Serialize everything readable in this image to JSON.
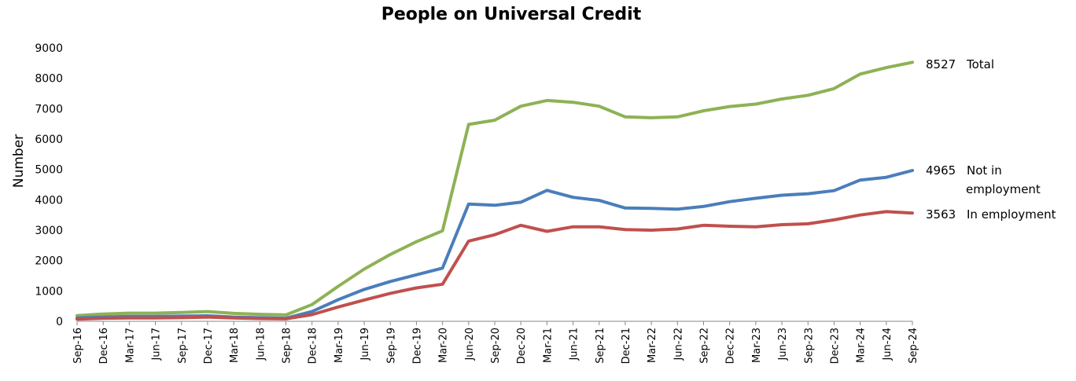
{
  "chart_data": {
    "type": "line",
    "title": "People on Universal Credit",
    "xlabel": "",
    "ylabel": "Number",
    "ylim": [
      0,
      9000
    ],
    "yticks": [
      0,
      1000,
      2000,
      3000,
      4000,
      5000,
      6000,
      7000,
      8000,
      9000
    ],
    "grid": false,
    "categories": [
      "Sep-16",
      "Dec-16",
      "Mar-17",
      "Jun-17",
      "Sep-17",
      "Dec-17",
      "Mar-18",
      "Jun-18",
      "Sep-18",
      "Dec-18",
      "Mar-19",
      "Jun-19",
      "Sep-19",
      "Dec-19",
      "Mar-20",
      "Jun-20",
      "Sep-20",
      "Dec-20",
      "Mar-21",
      "Jun-21",
      "Sep-21",
      "Dec-21",
      "Mar-22",
      "Jun-22",
      "Sep-22",
      "Dec-22",
      "Mar-23",
      "Jun-23",
      "Sep-23",
      "Dec-23",
      "Mar-24",
      "Jun-24",
      "Sep-24"
    ],
    "series": [
      {
        "name": "Total",
        "color": "#8db255",
        "end_value": "8527",
        "label_lines": [
          "Total"
        ],
        "values": [
          190,
          240,
          270,
          270,
          290,
          320,
          260,
          230,
          210,
          550,
          1150,
          1720,
          2200,
          2620,
          2980,
          6480,
          6620,
          7080,
          7270,
          7210,
          7080,
          6730,
          6700,
          6730,
          6930,
          7070,
          7150,
          7320,
          7440,
          7660,
          8140,
          8350,
          8527
        ]
      },
      {
        "name": "Not in employment",
        "color": "#4a7ebb",
        "end_value": "4965",
        "label_lines": [
          "Not in",
          "employment"
        ],
        "values": [
          110,
          140,
          160,
          160,
          170,
          180,
          140,
          120,
          100,
          320,
          710,
          1050,
          1310,
          1530,
          1750,
          3860,
          3820,
          3920,
          4310,
          4080,
          3980,
          3730,
          3720,
          3690,
          3780,
          3940,
          4050,
          4150,
          4200,
          4300,
          4650,
          4740,
          4965
        ]
      },
      {
        "name": "In employment",
        "color": "#c0504d",
        "end_value": "3563",
        "label_lines": [
          "In employment"
        ],
        "values": [
          70,
          100,
          110,
          110,
          120,
          140,
          110,
          90,
          80,
          220,
          470,
          700,
          920,
          1100,
          1220,
          2640,
          2850,
          3160,
          2960,
          3110,
          3110,
          3020,
          3000,
          3040,
          3160,
          3130,
          3110,
          3180,
          3210,
          3340,
          3500,
          3610,
          3563
        ]
      }
    ]
  }
}
